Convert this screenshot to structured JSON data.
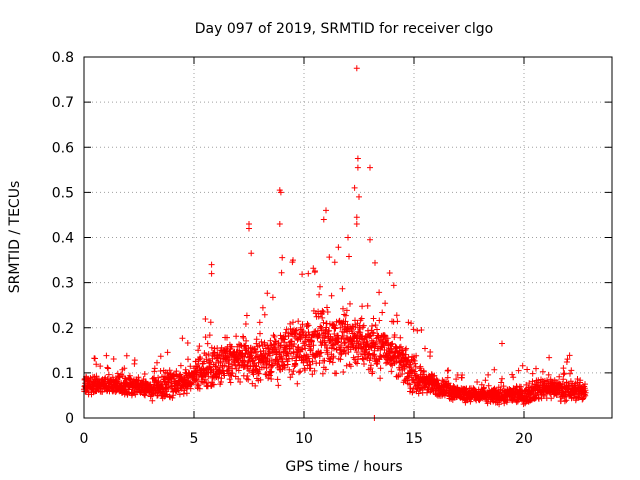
{
  "chart_data": {
    "type": "scatter",
    "title": "Day 097 of 2019, SRMTID for receiver clgo",
    "xlabel": "GPS time / hours",
    "ylabel": "SRMTID / TECUs",
    "xlim": [
      0,
      24
    ],
    "ylim": [
      0,
      0.8
    ],
    "xticks": [
      0,
      5,
      10,
      15,
      20
    ],
    "yticks": [
      0,
      0.1,
      0.2,
      0.3,
      0.4,
      0.5,
      0.6,
      0.7,
      0.8
    ],
    "grid": true,
    "marker": "+",
    "series_color": "#ff0000",
    "baseline_profile": {
      "x": [
        0,
        1,
        2,
        3,
        4,
        5,
        6,
        7,
        8,
        9,
        10,
        11,
        12,
        13,
        14,
        15,
        16,
        17,
        18,
        19,
        20,
        21,
        22,
        22.8
      ],
      "median": [
        0.07,
        0.075,
        0.07,
        0.065,
        0.075,
        0.09,
        0.12,
        0.13,
        0.13,
        0.14,
        0.16,
        0.17,
        0.18,
        0.16,
        0.15,
        0.09,
        0.07,
        0.055,
        0.05,
        0.05,
        0.05,
        0.07,
        0.06,
        0.06
      ],
      "spread": [
        0.03,
        0.03,
        0.03,
        0.03,
        0.04,
        0.05,
        0.07,
        0.07,
        0.07,
        0.08,
        0.09,
        0.09,
        0.09,
        0.08,
        0.07,
        0.05,
        0.03,
        0.025,
        0.025,
        0.025,
        0.025,
        0.035,
        0.03,
        0.03
      ]
    },
    "point_count": 2600,
    "outliers": [
      {
        "x": 12.4,
        "y": 0.775
      },
      {
        "x": 12.45,
        "y": 0.575
      },
      {
        "x": 12.45,
        "y": 0.555
      },
      {
        "x": 12.3,
        "y": 0.51
      },
      {
        "x": 12.5,
        "y": 0.49
      },
      {
        "x": 13.0,
        "y": 0.555
      },
      {
        "x": 8.9,
        "y": 0.505
      },
      {
        "x": 8.95,
        "y": 0.5
      },
      {
        "x": 8.9,
        "y": 0.43
      },
      {
        "x": 7.5,
        "y": 0.42
      },
      {
        "x": 7.5,
        "y": 0.43
      },
      {
        "x": 11.0,
        "y": 0.46
      },
      {
        "x": 10.9,
        "y": 0.44
      },
      {
        "x": 12.4,
        "y": 0.43
      },
      {
        "x": 13.0,
        "y": 0.395
      },
      {
        "x": 12.0,
        "y": 0.4
      },
      {
        "x": 12.4,
        "y": 0.445
      },
      {
        "x": 5.8,
        "y": 0.34
      },
      {
        "x": 5.8,
        "y": 0.32
      },
      {
        "x": 7.6,
        "y": 0.365
      },
      {
        "x": 9.5,
        "y": 0.35
      },
      {
        "x": 11.4,
        "y": 0.345
      },
      {
        "x": 19.0,
        "y": 0.165
      },
      {
        "x": 13.2,
        "y": 0.0
      }
    ]
  }
}
